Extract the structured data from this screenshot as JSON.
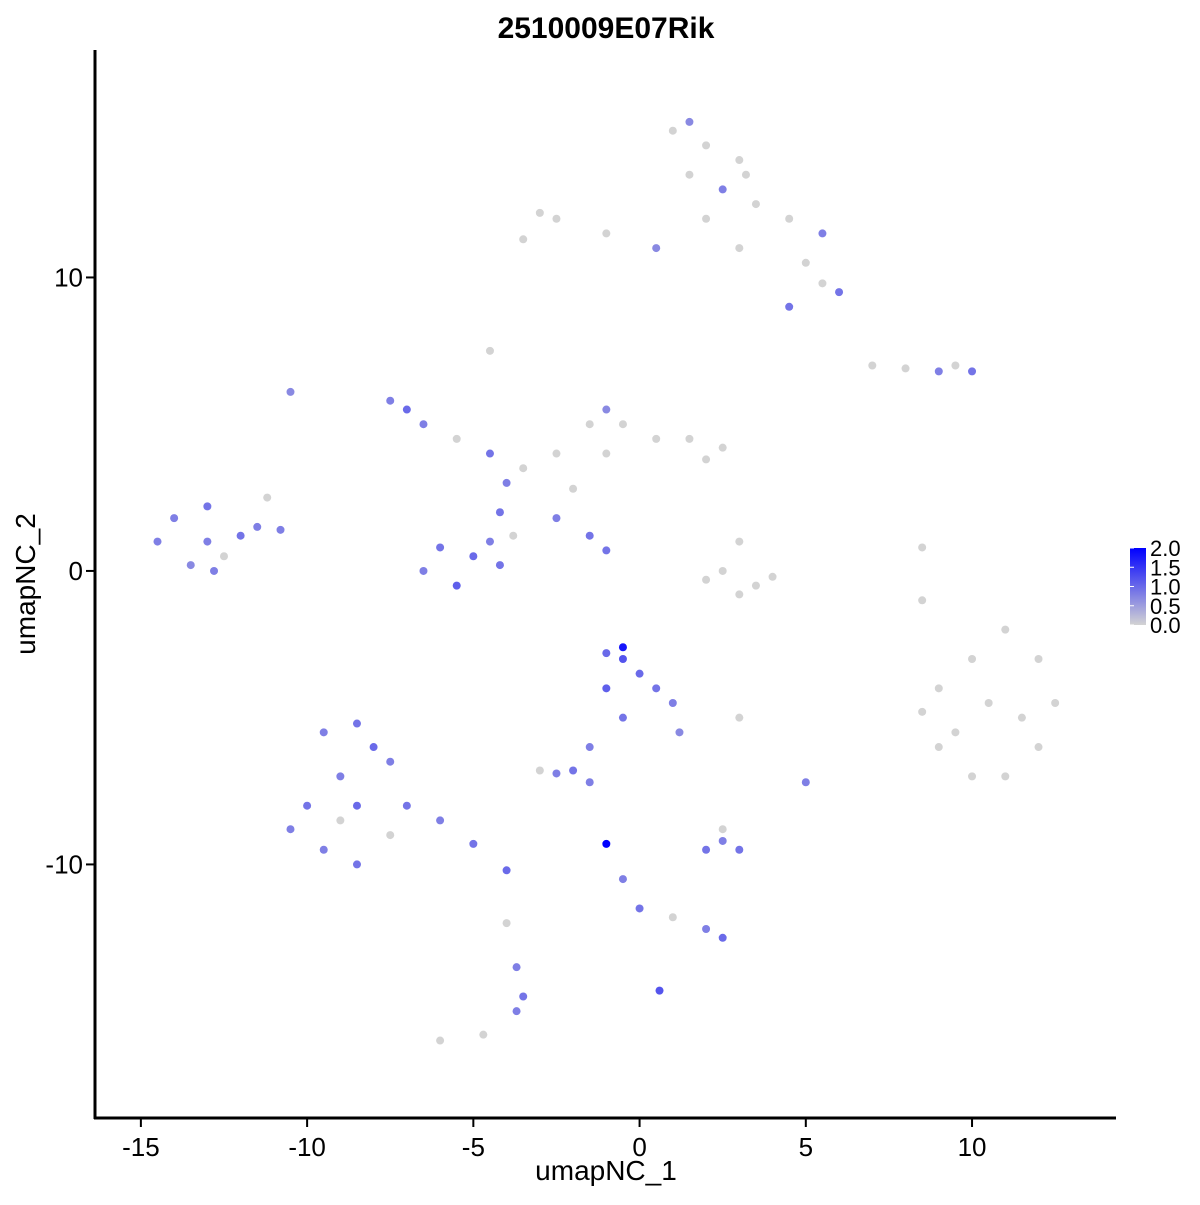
{
  "chart_data": {
    "type": "scatter",
    "title": "2510009E07Rik",
    "x_label": "umapNC_1",
    "y_label": "umapNC_2",
    "xlim": [
      -16.38,
      14.3
    ],
    "ylim": [
      -18.64,
      17.75
    ],
    "xticks": [
      -15,
      -10,
      -5,
      0,
      5,
      10
    ],
    "yticks": [
      -10,
      0,
      10
    ],
    "color_low": "#d3d3d3",
    "color_high": "#0000ff",
    "color_lim": [
      0,
      2
    ],
    "color_ticks": [
      {
        "value": 2,
        "label": "2.0"
      },
      1.5,
      {
        "value": 1,
        "label": "1.0"
      },
      0.5,
      {
        "value": 0,
        "label": "0.0"
      }
    ],
    "x": [
      1,
      2,
      3,
      1.5,
      2.5,
      3.5,
      4.5,
      5.5,
      5,
      6,
      4.5,
      5.5,
      3,
      2,
      -1,
      -2.5,
      -3,
      -3.5,
      0.5,
      1.5,
      3.2,
      7,
      8,
      9,
      10,
      9.5,
      -7.5,
      -7,
      -6.5,
      -5.5,
      -4.5,
      -3.5,
      -2.5,
      -1.5,
      -1,
      -0.5,
      0.5,
      1.5,
      2.5,
      2,
      -1,
      -4,
      -4.2,
      -4.5,
      -5,
      -6,
      -6.5,
      -5.5,
      -4.2,
      -3.8,
      -2.5,
      -1.5,
      -1,
      -4.5,
      -2,
      -14.5,
      -14,
      -13,
      -13,
      -12.5,
      -12,
      -11.5,
      -13.5,
      -12.8,
      -11.2,
      -10.8,
      3,
      2.5,
      3.5,
      2,
      3,
      4,
      9,
      10,
      11,
      12,
      12.5,
      12,
      11,
      10,
      9,
      10.5,
      11.5,
      9.5,
      8.5,
      8.5,
      8.5,
      -1,
      -0.5,
      0,
      0.5,
      1,
      -1,
      -0.5,
      1.2,
      -0.5,
      -1.5,
      -2,
      -2.5,
      -3,
      -9.5,
      -8.5,
      -8,
      -9,
      -10,
      -10.5,
      -9.5,
      -8.5,
      -7.5,
      -7,
      -6,
      -5,
      -4,
      -8.5,
      -7.5,
      -9,
      -4,
      -3.7,
      -3.5,
      -3.7,
      -1,
      -0.5,
      0,
      1,
      2,
      2.5,
      0.6,
      2,
      2.5,
      3,
      2.5,
      5,
      3,
      -6,
      -4.7,
      -10.5,
      -1.5
    ],
    "y": [
      15,
      14.5,
      14,
      13.5,
      13,
      12.5,
      12,
      11.5,
      10.5,
      9.5,
      9,
      9.8,
      11,
      12,
      11.5,
      12,
      12.2,
      11.3,
      11,
      15.3,
      13.5,
      7,
      6.9,
      6.8,
      6.8,
      7,
      5.8,
      5.5,
      5,
      4.5,
      4,
      3.5,
      4,
      5,
      5.5,
      5,
      4.5,
      4.5,
      4.2,
      3.8,
      4,
      3,
      2,
      1,
      0.5,
      0.8,
      0,
      -0.5,
      0.2,
      1.2,
      1.8,
      1.2,
      0.7,
      7.5,
      2.8,
      1,
      1.8,
      2.2,
      1,
      0.5,
      1.2,
      1.5,
      0.2,
      0,
      2.5,
      1.4,
      1,
      0,
      -0.5,
      -0.3,
      -0.8,
      -0.2,
      -4,
      -3,
      -2,
      -3,
      -4.5,
      -6,
      -7,
      -7,
      -6,
      -4.5,
      -5,
      -5.5,
      -4.8,
      -1,
      0.8,
      -2.8,
      -3,
      -3.5,
      -4,
      -4.5,
      -4,
      -5,
      -5.5,
      -2.6,
      -6,
      -6.8,
      -6.9,
      -6.8,
      -5.5,
      -5.2,
      -6,
      -7,
      -8,
      -8.8,
      -9.5,
      -10,
      -9,
      -8,
      -8.5,
      -9.3,
      -10.2,
      -8,
      -6.5,
      -8.5,
      -12,
      -13.5,
      -14.5,
      -15,
      -9.3,
      -10.5,
      -11.5,
      -11.8,
      -12.2,
      -12.5,
      -14.3,
      -9.5,
      -9.2,
      -9.5,
      -8.8,
      -7.2,
      -5,
      -16,
      -15.8,
      6.1,
      -7.2
    ],
    "expression": [
      0,
      0,
      0,
      0,
      0.8,
      0,
      0,
      0.8,
      0,
      0.9,
      0.9,
      0,
      0,
      0,
      0,
      0,
      0,
      0,
      0.7,
      0.7,
      0,
      0,
      0,
      0.8,
      0.9,
      0,
      0.8,
      1,
      0.8,
      0,
      0.9,
      0,
      0,
      0,
      0.7,
      0,
      0,
      0,
      0,
      0,
      0,
      0.8,
      0.9,
      0.8,
      1,
      0.9,
      0.8,
      1.1,
      0.9,
      0,
      0.8,
      0.9,
      0.9,
      0,
      0,
      0.8,
      0.8,
      0.9,
      0.8,
      0,
      0.9,
      0.8,
      0.7,
      0.8,
      0,
      0.8,
      0,
      0,
      0,
      0,
      0,
      0,
      0,
      0,
      0,
      0,
      0,
      0,
      0,
      0,
      0,
      0,
      0,
      0,
      0,
      0,
      0,
      1,
      1.2,
      1,
      0.9,
      0.8,
      1.1,
      0.9,
      0.7,
      1.8,
      0.8,
      0.9,
      0.8,
      0,
      0.8,
      0.9,
      1,
      0.8,
      0.9,
      0.8,
      0.8,
      0.9,
      0,
      0.9,
      0.8,
      0.9,
      1,
      1,
      0.8,
      0,
      0,
      0.8,
      0.9,
      0.8,
      2,
      0.8,
      0.9,
      0,
      0.8,
      1,
      1.2,
      0.9,
      0.8,
      0.9,
      0,
      0.8,
      0,
      0,
      0,
      0.7,
      0.8
    ]
  }
}
